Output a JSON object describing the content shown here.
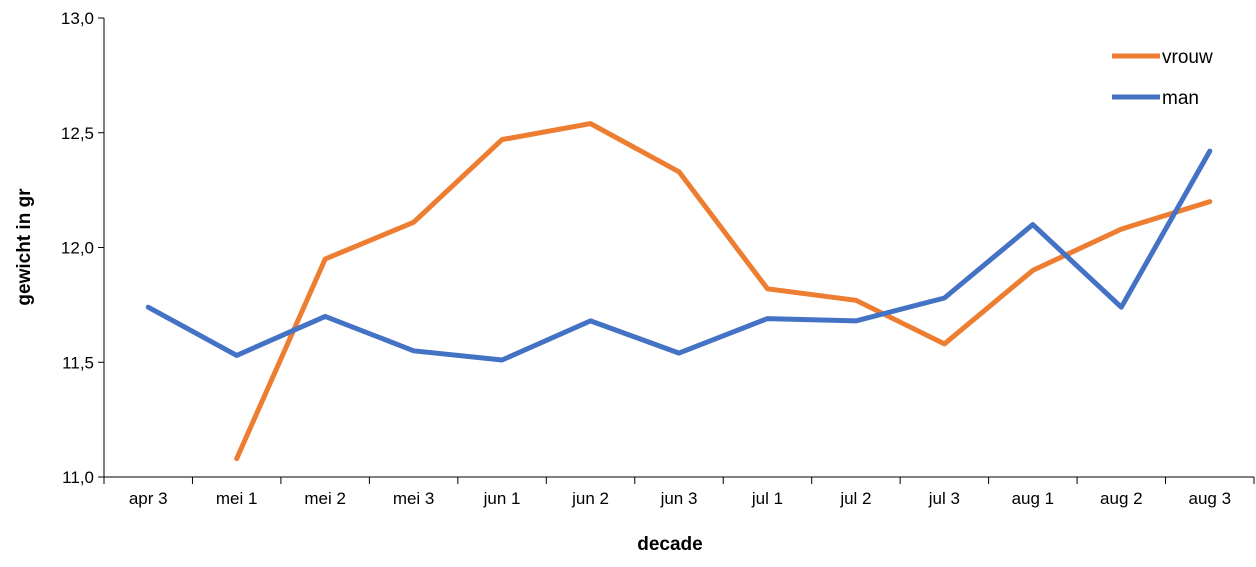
{
  "chart_data": {
    "type": "line",
    "title": "",
    "xlabel": "decade",
    "ylabel": "gewicht in gr",
    "ylim": [
      11.0,
      13.0
    ],
    "yticks": [
      "11,0",
      "11,5",
      "12,0",
      "12,5",
      "13,0"
    ],
    "ytick_values": [
      11.0,
      11.5,
      12.0,
      12.5,
      13.0
    ],
    "categories": [
      "apr 3",
      "mei 1",
      "mei 2",
      "mei 3",
      "jun 1",
      "jun 2",
      "jun 3",
      "jul 1",
      "jul 2",
      "jul 3",
      "aug 1",
      "aug 2",
      "aug 3"
    ],
    "series": [
      {
        "name": "vrouw",
        "color": "#ED7D31",
        "values": [
          null,
          11.08,
          11.95,
          12.11,
          12.47,
          12.54,
          12.33,
          11.82,
          11.77,
          11.58,
          11.9,
          12.08,
          12.2
        ]
      },
      {
        "name": "man",
        "color": "#4472C4",
        "values": [
          11.74,
          11.53,
          11.7,
          11.55,
          11.51,
          11.68,
          11.54,
          11.69,
          11.68,
          11.78,
          12.1,
          11.74,
          12.42
        ]
      }
    ],
    "grid": false,
    "legend_position": "top-right"
  }
}
